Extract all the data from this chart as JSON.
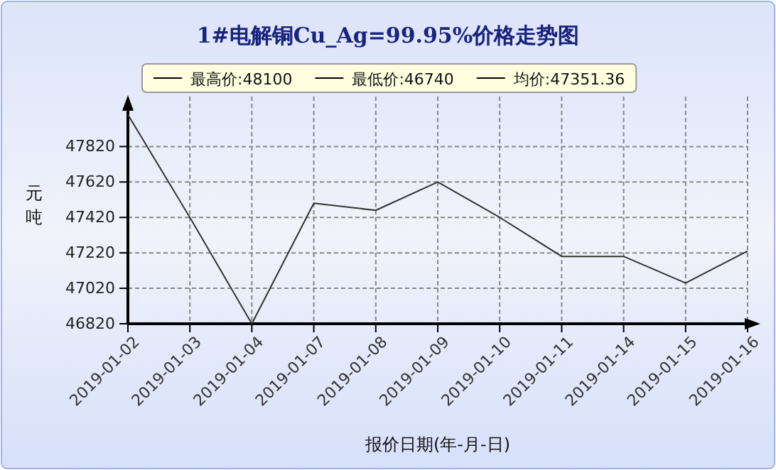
{
  "chart_data": {
    "type": "line",
    "title": "1#电解铜Cu_Ag=99.95%价格走势图",
    "xlabel": "报价日期(年-月-日)",
    "ylabel": "元吨",
    "annotations": [
      "最高价:48100",
      "最低价:46740",
      "均价:47351.36"
    ],
    "categories": [
      "2019-01-02",
      "2019-01-03",
      "2019-01-04",
      "2019-01-07",
      "2019-01-08",
      "2019-01-09",
      "2019-01-10",
      "2019-01-11",
      "2019-01-14",
      "2019-01-15",
      "2019-01-16"
    ],
    "series": [
      {
        "color": "#333333",
        "values": [
          48000,
          47420,
          46820,
          47500,
          47460,
          47620,
          47420,
          47200,
          47200,
          47050,
          47230
        ]
      }
    ],
    "ylim": [
      46820,
      48070
    ],
    "yticks": [
      46820,
      47020,
      47220,
      47420,
      47620,
      47820
    ],
    "grid": true,
    "marker": "none",
    "line_style": "solid"
  }
}
